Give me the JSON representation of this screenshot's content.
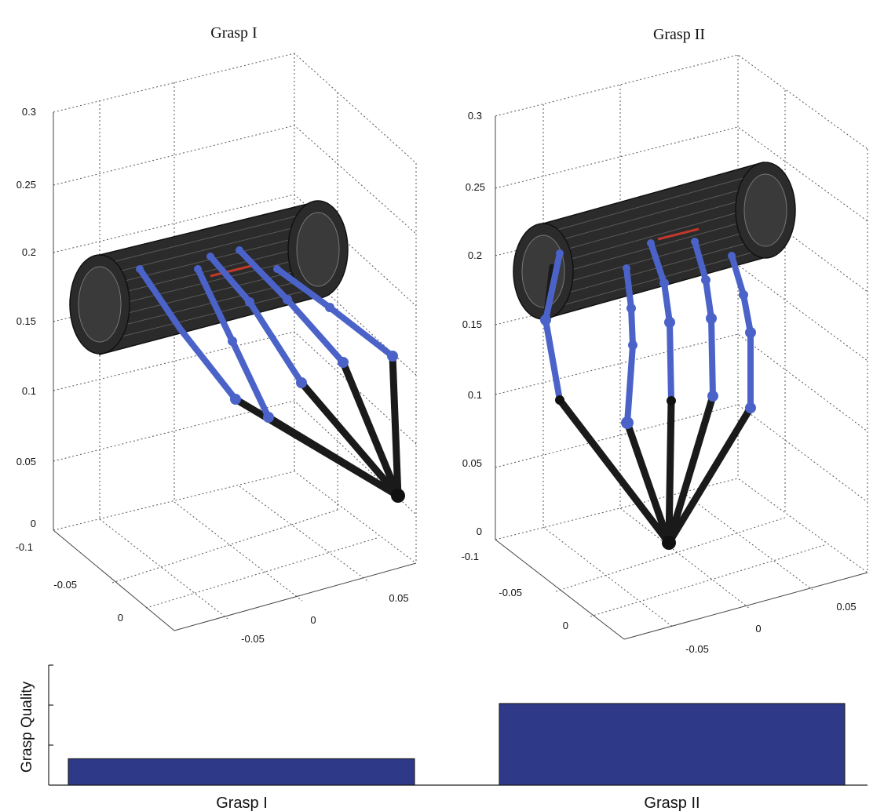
{
  "panels": [
    {
      "title": "Grasp I",
      "z_ticks": [
        "0",
        "0.05",
        "0.1",
        "0.15",
        "0.2",
        "0.25",
        "0.3"
      ],
      "x_ticks": [
        "-0.05",
        "0",
        "0.05"
      ],
      "y_ticks": [
        "-0.1",
        "-0.05",
        "0"
      ]
    },
    {
      "title": "Grasp II",
      "z_ticks": [
        "0",
        "0.05",
        "0.1",
        "0.15",
        "0.2",
        "0.25",
        "0.3"
      ],
      "x_ticks": [
        "-0.05",
        "0",
        "0.05"
      ],
      "y_ticks": [
        "-0.1",
        "-0.05",
        "0"
      ]
    }
  ],
  "colors": {
    "cylinder": "#2b2b2b",
    "proximal_links": "#1a1a1a",
    "distal_links": "#4b63c8",
    "contact_marker": "#c0392b",
    "bar": "#2e3a87"
  },
  "chart_data": {
    "type": "bar",
    "categories": [
      "Grasp I",
      "Grasp II"
    ],
    "values": [
      0.22,
      0.68
    ],
    "ylabel": "Grasp Quality",
    "ylim": [
      0,
      1
    ],
    "grid": false
  }
}
